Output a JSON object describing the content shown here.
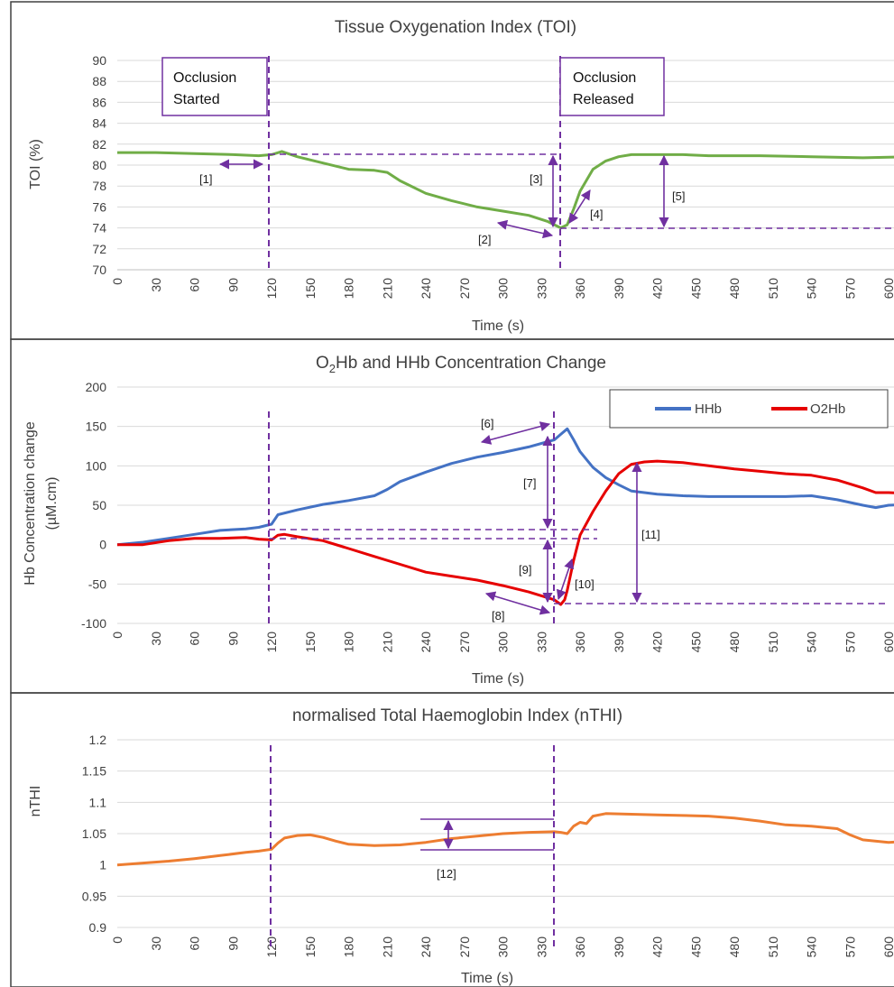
{
  "chart_data": [
    {
      "type": "line",
      "title": "Tissue Oxygenation Index (TOI)",
      "xlabel": "Time (s)",
      "ylabel": "TOI (%)",
      "xlim": [
        0,
        620
      ],
      "ylim": [
        70,
        90
      ],
      "x_ticks": [
        "0",
        "30",
        "60",
        "90",
        "120",
        "150",
        "180",
        "210",
        "240",
        "270",
        "300",
        "330",
        "360",
        "390",
        "420",
        "450",
        "480",
        "510",
        "540",
        "570",
        "600"
      ],
      "y_ticks": [
        "70",
        "72",
        "74",
        "76",
        "78",
        "80",
        "82",
        "84",
        "86",
        "88",
        "90"
      ],
      "grid": true,
      "colors": {
        "TOI": "#70ad47"
      },
      "series": [
        {
          "key": "TOI",
          "x": [
            0,
            30,
            60,
            90,
            110,
            120,
            128,
            140,
            160,
            180,
            200,
            210,
            220,
            240,
            260,
            280,
            300,
            320,
            335,
            345,
            350,
            355,
            360,
            370,
            380,
            390,
            400,
            420,
            440,
            460,
            500,
            540,
            580,
            620
          ],
          "y": [
            81.2,
            81.2,
            81.1,
            81.0,
            80.9,
            81.0,
            81.3,
            80.8,
            80.2,
            79.6,
            79.5,
            79.3,
            78.5,
            77.3,
            76.6,
            76.0,
            75.6,
            75.2,
            74.6,
            74.0,
            74.3,
            75.8,
            77.5,
            79.6,
            80.4,
            80.8,
            81.0,
            81.0,
            81.0,
            80.9,
            80.9,
            80.8,
            80.7,
            80.8
          ]
        }
      ],
      "occlusion_lines": [
        120,
        352
      ],
      "text_boxes": [
        {
          "lines": [
            "Occlusion",
            "Started"
          ]
        },
        {
          "lines": [
            "Occlusion",
            "Released"
          ]
        }
      ],
      "annotations": [
        "[1]",
        "[2]",
        "[3]",
        "[4]",
        "[5]"
      ]
    },
    {
      "type": "line",
      "title_prefix": "O",
      "title_sub": "2",
      "title_suffix": "Hb and HHb Concentration Change",
      "xlabel": "Time (s)",
      "ylabel_line1": "Hb Concentration change",
      "ylabel_line2": "(µM.cm)",
      "xlim": [
        0,
        620
      ],
      "ylim": [
        -100,
        200
      ],
      "x_ticks": [
        "0",
        "30",
        "60",
        "90",
        "120",
        "150",
        "180",
        "210",
        "240",
        "270",
        "300",
        "330",
        "360",
        "390",
        "420",
        "450",
        "480",
        "510",
        "540",
        "570",
        "600"
      ],
      "y_ticks": [
        "-100",
        "-50",
        "0",
        "50",
        "100",
        "150",
        "200"
      ],
      "grid": true,
      "colors": {
        "HHb": "#4472c4",
        "O2Hb": "#e60000"
      },
      "legend": {
        "position": "top-right",
        "entries": [
          "HHb",
          "O2Hb"
        ]
      },
      "series": [
        {
          "name": "HHb",
          "x": [
            0,
            20,
            40,
            60,
            80,
            100,
            110,
            120,
            125,
            140,
            160,
            180,
            200,
            210,
            220,
            240,
            260,
            280,
            300,
            320,
            340,
            345,
            350,
            355,
            360,
            370,
            380,
            390,
            400,
            420,
            440,
            460,
            480,
            500,
            520,
            540,
            560,
            580,
            590,
            600,
            620
          ],
          "y": [
            0,
            3,
            8,
            13,
            18,
            20,
            22,
            26,
            38,
            44,
            51,
            56,
            62,
            70,
            80,
            92,
            103,
            111,
            117,
            124,
            133,
            140,
            147,
            133,
            118,
            98,
            85,
            76,
            68,
            64,
            62,
            61,
            61,
            61,
            61,
            62,
            57,
            50,
            47,
            50,
            51
          ]
        },
        {
          "name": "O2Hb",
          "x": [
            0,
            20,
            40,
            60,
            80,
            100,
            110,
            120,
            125,
            130,
            140,
            160,
            180,
            200,
            220,
            240,
            260,
            280,
            300,
            320,
            340,
            345,
            348,
            350,
            355,
            360,
            370,
            380,
            390,
            400,
            410,
            420,
            440,
            460,
            480,
            500,
            520,
            540,
            560,
            580,
            590,
            600,
            620
          ],
          "y": [
            0,
            0,
            5,
            8,
            8,
            9,
            7,
            6,
            12,
            13,
            10,
            5,
            -5,
            -15,
            -25,
            -35,
            -40,
            -45,
            -52,
            -60,
            -70,
            -76,
            -70,
            -58,
            -20,
            12,
            42,
            68,
            90,
            102,
            105,
            106,
            104,
            100,
            96,
            93,
            90,
            88,
            82,
            72,
            66,
            66,
            65
          ]
        }
      ],
      "occlusion_lines": [
        120,
        347
      ],
      "annotations": [
        "[6]",
        "[7]",
        "[8]",
        "[9]",
        "[10]",
        "[11]"
      ]
    },
    {
      "type": "line",
      "title": "normalised Total Haemoglobin Index (nTHI)",
      "xlabel": "Time (s)",
      "ylabel": "nTHI",
      "xlim": [
        0,
        620
      ],
      "ylim": [
        0.9,
        1.2
      ],
      "x_ticks": [
        "0",
        "30",
        "60",
        "90",
        "120",
        "150",
        "180",
        "210",
        "240",
        "270",
        "300",
        "330",
        "360",
        "390",
        "420",
        "450",
        "480",
        "510",
        "540",
        "570",
        "600"
      ],
      "y_ticks": [
        "0.9",
        "0.95",
        "1",
        "1.05",
        "1.1",
        "1.15",
        "1.2"
      ],
      "grid": true,
      "colors": {
        "nTHI": "#ed7d31"
      },
      "series": [
        {
          "key": "nTHI",
          "x": [
            0,
            20,
            40,
            60,
            80,
            100,
            110,
            120,
            125,
            130,
            140,
            150,
            160,
            170,
            180,
            200,
            220,
            240,
            260,
            280,
            300,
            320,
            340,
            345,
            350,
            355,
            360,
            365,
            370,
            380,
            400,
            420,
            440,
            460,
            480,
            500,
            520,
            540,
            560,
            570,
            580,
            600,
            620
          ],
          "y": [
            1.0,
            1.003,
            1.006,
            1.01,
            1.015,
            1.02,
            1.022,
            1.025,
            1.035,
            1.043,
            1.047,
            1.048,
            1.044,
            1.038,
            1.033,
            1.031,
            1.032,
            1.036,
            1.042,
            1.046,
            1.05,
            1.052,
            1.053,
            1.052,
            1.05,
            1.062,
            1.068,
            1.066,
            1.078,
            1.082,
            1.081,
            1.08,
            1.079,
            1.078,
            1.075,
            1.07,
            1.064,
            1.062,
            1.058,
            1.048,
            1.04,
            1.036,
            1.038
          ]
        }
      ],
      "occlusion_lines": [
        120,
        347
      ],
      "annotations": [
        "[12]"
      ]
    }
  ]
}
